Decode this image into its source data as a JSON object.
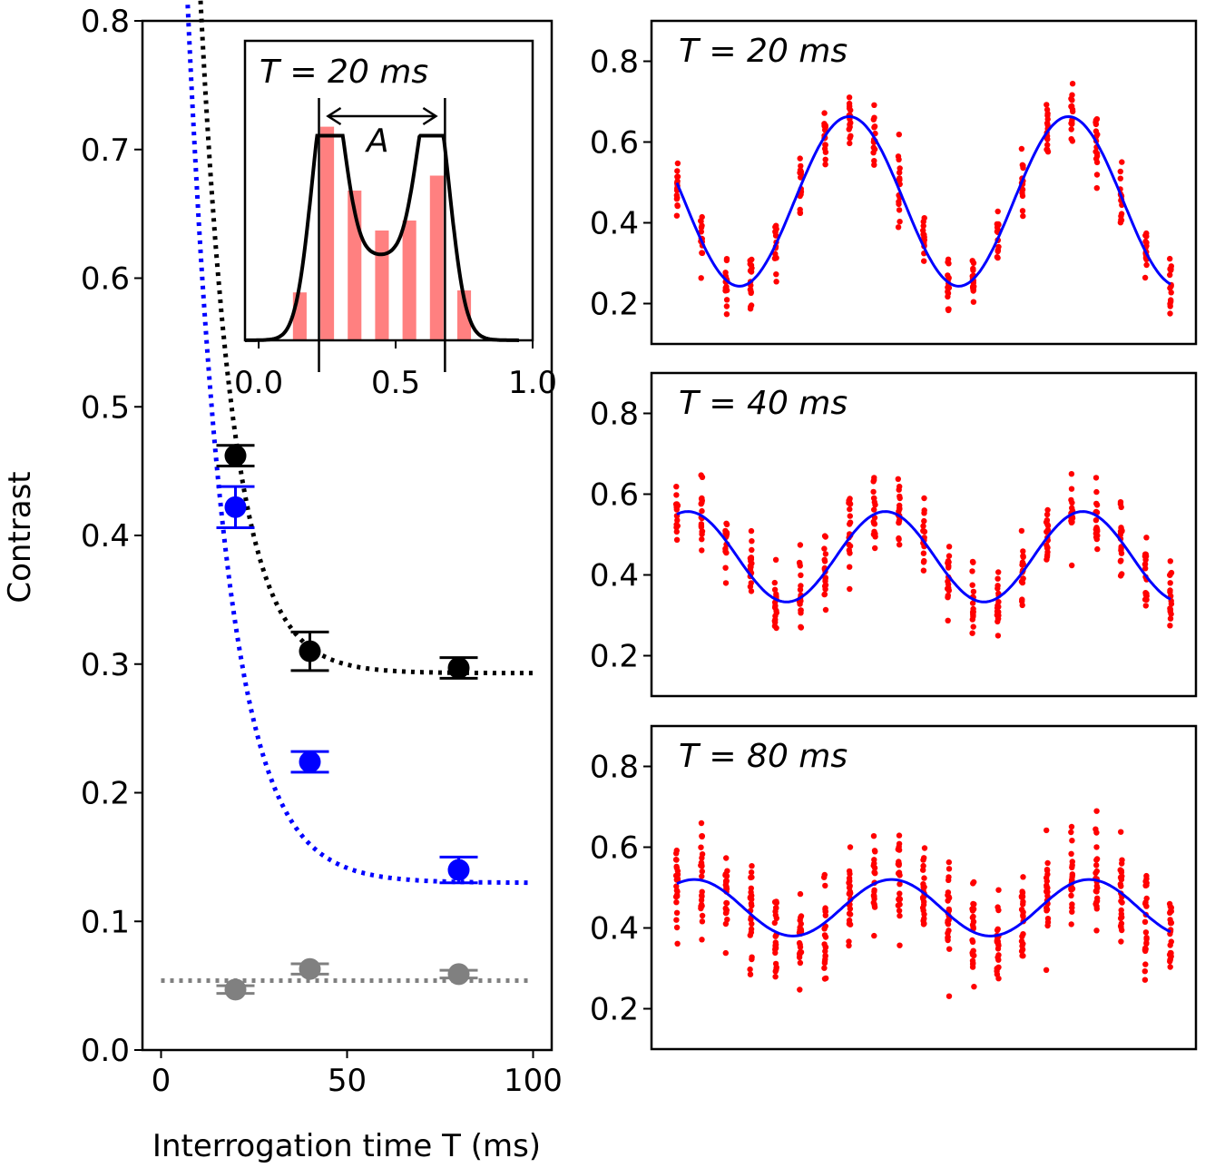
{
  "chart_data": [
    {
      "id": "main",
      "type": "scatter",
      "xlabel": "Interrogation time T (ms)",
      "ylabel": "Contrast",
      "xlim": [
        -5,
        105
      ],
      "ylim": [
        0.0,
        0.8
      ],
      "xticks": [
        0,
        50,
        100
      ],
      "yticks": [
        0.0,
        0.1,
        0.2,
        0.3,
        0.4,
        0.5,
        0.6,
        0.7,
        0.8
      ],
      "series": [
        {
          "name": "black",
          "color": "#000000",
          "x": [
            20,
            40,
            80
          ],
          "y": [
            0.462,
            0.31,
            0.297
          ],
          "yerr": [
            0.008,
            0.015,
            0.008
          ],
          "fit": {
            "model": "exp",
            "a": 0.293,
            "b": 1.7,
            "tau": 9.0,
            "x": [
              5,
              100
            ]
          }
        },
        {
          "name": "blue",
          "color": "#0000ff",
          "x": [
            20,
            40,
            80
          ],
          "y": [
            0.422,
            0.224,
            0.14
          ],
          "yerr": [
            0.016,
            0.008,
            0.01
          ],
          "fit": {
            "model": "exp",
            "a": 0.13,
            "b": 1.35,
            "tau": 10.5,
            "x": [
              4,
              100
            ]
          }
        },
        {
          "name": "gray",
          "color": "#808080",
          "x": [
            20,
            40,
            80
          ],
          "y": [
            0.047,
            0.063,
            0.059
          ],
          "yerr": [
            0.003,
            0.004,
            0.003
          ],
          "fit": {
            "model": "const",
            "a": 0.054,
            "x": [
              0,
              100
            ]
          }
        }
      ]
    },
    {
      "id": "inset",
      "type": "bar",
      "title": "T = 20 ms",
      "annotation": "A",
      "xlim": [
        -0.05,
        1.0
      ],
      "ylim": [
        0.0,
        0.3
      ],
      "xticks": [
        "0.0",
        "0.5",
        "1.0"
      ],
      "bar_color": "#ff8080",
      "bars": {
        "x": [
          0.15,
          0.25,
          0.35,
          0.45,
          0.55,
          0.65,
          0.75
        ],
        "values": [
          0.048,
          0.214,
          0.15,
          0.11,
          0.12,
          0.165,
          0.05
        ]
      },
      "curve": {
        "color": "#000000",
        "peaks": [
          {
            "amp": 0.205,
            "mu": 0.25,
            "sigma": 0.058
          },
          {
            "amp": 0.19,
            "mu": 0.64,
            "sigma": 0.058
          }
        ],
        "base": 0.085,
        "cap1": 0.1,
        "cap2": 0.06,
        "window": [
          0.22,
          0.68
        ],
        "edge": 0.035
      },
      "markers": [
        0.22,
        0.68
      ]
    },
    {
      "id": "osc-20",
      "type": "scatter",
      "title": "T = 20 ms",
      "ylim": [
        0.1,
        0.9
      ],
      "yticks": [
        "0.2",
        "0.4",
        "0.6",
        "0.8"
      ],
      "point_color": "#ff0000",
      "fit_color": "#0000ff",
      "fit": {
        "offset": 0.453,
        "amplitude": 0.21,
        "periods": 2.25,
        "phase": 1.35
      },
      "noise": 0.07
    },
    {
      "id": "osc-40",
      "type": "scatter",
      "title": "T = 40 ms",
      "ylim": [
        0.1,
        0.9
      ],
      "yticks": [
        "0.2",
        "0.4",
        "0.6",
        "0.8"
      ],
      "point_color": "#ff0000",
      "fit_color": "#0000ff",
      "fit": {
        "offset": 0.445,
        "amplitude": 0.112,
        "periods": 2.5,
        "phase": -0.35
      },
      "noise": 0.085
    },
    {
      "id": "osc-80",
      "type": "scatter",
      "title": "T = 80 ms",
      "ylim": [
        0.1,
        0.9
      ],
      "yticks": [
        "0.2",
        "0.4",
        "0.6",
        "0.8"
      ],
      "point_color": "#ff0000",
      "fit_color": "#0000ff",
      "fit": {
        "offset": 0.45,
        "amplitude": 0.07,
        "periods": 2.5,
        "phase": -0.55
      },
      "noise": 0.11
    }
  ]
}
